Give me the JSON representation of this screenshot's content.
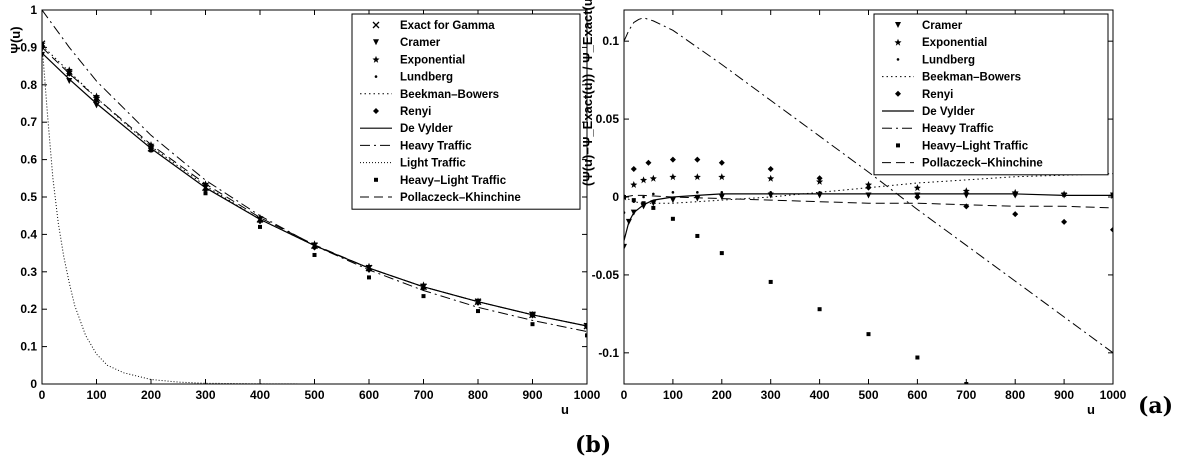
{
  "panel_labels": {
    "right": "(a)",
    "bottom": "(b)"
  },
  "chart_data": [
    {
      "type": "line",
      "panel": "left",
      "xlabel": "u",
      "ylabel": "Ψ(u)",
      "xlim": [
        0,
        1000
      ],
      "ylim": [
        0,
        1
      ],
      "xticks": [
        0,
        100,
        200,
        300,
        400,
        500,
        600,
        700,
        800,
        900,
        1000
      ],
      "yticks": [
        0,
        0.1,
        0.2,
        0.3,
        0.4,
        0.5,
        0.6,
        0.7,
        0.8,
        0.9,
        1
      ],
      "legend_position": "top-right",
      "series": [
        {
          "name": "Exact for Gamma",
          "style": "marker-x",
          "x": [
            0,
            50,
            100,
            200,
            300,
            400,
            500,
            600,
            700,
            800,
            900,
            1000
          ],
          "y": [
            0.91,
            0.83,
            0.76,
            0.63,
            0.525,
            0.44,
            0.37,
            0.31,
            0.26,
            0.22,
            0.185,
            0.155
          ]
        },
        {
          "name": "Cramer",
          "style": "marker-triangle",
          "x": [
            0,
            50,
            100,
            200,
            300,
            400,
            500,
            600,
            700,
            800,
            900,
            1000
          ],
          "y": [
            0.88,
            0.81,
            0.745,
            0.625,
            0.525,
            0.44,
            0.37,
            0.31,
            0.26,
            0.22,
            0.185,
            0.155
          ]
        },
        {
          "name": "Exponential",
          "style": "marker-star",
          "x": [
            0,
            50,
            100,
            200,
            300,
            400,
            500,
            600,
            700,
            800,
            900,
            1000
          ],
          "y": [
            0.91,
            0.84,
            0.77,
            0.64,
            0.535,
            0.445,
            0.375,
            0.315,
            0.265,
            0.222,
            0.186,
            0.156
          ]
        },
        {
          "name": "Lundberg",
          "style": "marker-dot",
          "x": [
            0,
            50,
            100,
            200,
            300,
            400,
            500,
            600,
            700,
            800,
            900,
            1000
          ],
          "y": [
            0.905,
            0.83,
            0.765,
            0.635,
            0.53,
            0.445,
            0.372,
            0.312,
            0.262,
            0.22,
            0.185,
            0.155
          ]
        },
        {
          "name": "Beekman–Bowers",
          "style": "dotted",
          "x": [
            0,
            50,
            100,
            200,
            300,
            400,
            500,
            600,
            700,
            800,
            900,
            1000
          ],
          "y": [
            0.905,
            0.835,
            0.765,
            0.635,
            0.53,
            0.44,
            0.37,
            0.31,
            0.26,
            0.22,
            0.185,
            0.155
          ]
        },
        {
          "name": "Renyi",
          "style": "marker-diamond",
          "x": [
            0,
            50,
            100,
            200,
            300,
            400,
            500,
            600,
            700,
            800,
            900,
            1000
          ],
          "y": [
            0.9,
            0.83,
            0.76,
            0.63,
            0.52,
            0.435,
            0.365,
            0.305,
            0.257,
            0.217,
            0.183,
            0.153
          ]
        },
        {
          "name": "De Vylder",
          "style": "solid",
          "x": [
            0,
            50,
            100,
            200,
            300,
            400,
            500,
            600,
            700,
            800,
            900,
            1000
          ],
          "y": [
            0.885,
            0.815,
            0.75,
            0.63,
            0.525,
            0.44,
            0.37,
            0.31,
            0.26,
            0.22,
            0.185,
            0.155
          ]
        },
        {
          "name": "Heavy Traffic",
          "style": "dashdot",
          "x": [
            0,
            50,
            100,
            200,
            300,
            400,
            500,
            600,
            700,
            800,
            900,
            1000
          ],
          "y": [
            1.0,
            0.9,
            0.81,
            0.665,
            0.545,
            0.45,
            0.37,
            0.305,
            0.25,
            0.205,
            0.17,
            0.14
          ]
        },
        {
          "name": "Light Traffic",
          "style": "dotted-fine",
          "x": [
            0,
            10,
            20,
            30,
            40,
            50,
            60,
            80,
            100,
            120,
            150,
            200,
            250,
            300,
            400,
            500,
            600,
            700,
            800,
            900,
            1000
          ],
          "y": [
            0.91,
            0.72,
            0.55,
            0.43,
            0.34,
            0.27,
            0.21,
            0.13,
            0.08,
            0.05,
            0.03,
            0.012,
            0.005,
            0.002,
            0.0005,
            0,
            0,
            0,
            0,
            0,
            0
          ]
        },
        {
          "name": "Heavy–Light Traffic",
          "style": "marker-square",
          "x": [
            0,
            50,
            100,
            200,
            300,
            400,
            500,
            600,
            700,
            800,
            900,
            1000
          ],
          "y": [
            0.91,
            0.83,
            0.76,
            0.625,
            0.51,
            0.42,
            0.345,
            0.285,
            0.235,
            0.195,
            0.16,
            0.13
          ]
        },
        {
          "name": "Pollaczeck–Khinchine",
          "style": "dashed",
          "x": [
            0,
            50,
            100,
            200,
            300,
            400,
            500,
            600,
            700,
            800,
            900,
            1000
          ],
          "y": [
            0.9,
            0.83,
            0.765,
            0.64,
            0.535,
            0.445,
            0.372,
            0.31,
            0.26,
            0.22,
            0.185,
            0.155
          ]
        }
      ]
    },
    {
      "type": "line",
      "panel": "right",
      "xlabel": "u",
      "ylabel": "(Ψ(u)−Ψ_Exact(u)) / Ψ_Exact(u)",
      "xlim": [
        0,
        1000
      ],
      "ylim": [
        -0.12,
        0.12
      ],
      "xticks": [
        0,
        100,
        200,
        300,
        400,
        500,
        600,
        700,
        800,
        900,
        1000
      ],
      "yticks": [
        -0.1,
        -0.05,
        0,
        0.05,
        0.1
      ],
      "legend_position": "top-right",
      "series": [
        {
          "name": "Cramer",
          "style": "marker-triangle",
          "x": [
            0,
            10,
            20,
            40,
            60,
            100,
            150,
            200,
            300,
            400,
            500,
            600,
            700,
            800,
            900,
            1000
          ],
          "y": [
            -0.032,
            -0.016,
            -0.01,
            -0.006,
            -0.004,
            -0.002,
            -0.001,
            0,
            0.001,
            0.001,
            0.001,
            0.001,
            0.001,
            0.001,
            0.001,
            0.001
          ]
        },
        {
          "name": "Exponential",
          "style": "marker-star",
          "x": [
            0,
            20,
            40,
            60,
            100,
            150,
            200,
            300,
            400,
            500,
            600,
            700,
            800,
            900,
            1000
          ],
          "y": [
            0.0,
            0.008,
            0.011,
            0.012,
            0.013,
            0.013,
            0.013,
            0.012,
            0.01,
            0.008,
            0.006,
            0.004,
            0.003,
            0.002,
            0.001
          ]
        },
        {
          "name": "Lundberg",
          "style": "marker-dot",
          "x": [
            0,
            20,
            40,
            60,
            100,
            150,
            200,
            300,
            400,
            500,
            600,
            700,
            800,
            900,
            1000
          ],
          "y": [
            -0.01,
            -0.003,
            0.0,
            0.002,
            0.003,
            0.003,
            0.003,
            0.003,
            0.003,
            0.002,
            0.002,
            0.002,
            0.001,
            0.001,
            0.0
          ]
        },
        {
          "name": "Beekman–Bowers",
          "style": "dotted",
          "x": [
            0,
            20,
            40,
            60,
            100,
            150,
            200,
            300,
            400,
            500,
            600,
            700,
            800,
            900,
            1000
          ],
          "y": [
            0.0,
            -0.003,
            -0.004,
            -0.004,
            -0.004,
            -0.003,
            -0.002,
            0,
            0.003,
            0.006,
            0.009,
            0.011,
            0.013,
            0.014,
            0.015
          ]
        },
        {
          "name": "Renyi",
          "style": "marker-diamond",
          "x": [
            0,
            20,
            50,
            100,
            150,
            200,
            300,
            400,
            500,
            600,
            700,
            800,
            900,
            1000
          ],
          "y": [
            0.0,
            0.018,
            0.022,
            0.024,
            0.024,
            0.022,
            0.018,
            0.012,
            0.006,
            0.0,
            -0.006,
            -0.011,
            -0.016,
            -0.021
          ]
        },
        {
          "name": "De Vylder",
          "style": "solid",
          "x": [
            0,
            10,
            20,
            40,
            60,
            100,
            150,
            200,
            300,
            400,
            500,
            600,
            700,
            800,
            900,
            1000
          ],
          "y": [
            -0.028,
            -0.016,
            -0.01,
            -0.005,
            -0.002,
            0.0,
            0.001,
            0.002,
            0.002,
            0.002,
            0.002,
            0.002,
            0.002,
            0.002,
            0.001,
            0.001
          ]
        },
        {
          "name": "Heavy Traffic",
          "style": "dashdot",
          "x": [
            0,
            10,
            20,
            30,
            40,
            60,
            100,
            150,
            200,
            300,
            400,
            500,
            600,
            700,
            800,
            900,
            1000
          ],
          "y": [
            0.1,
            0.107,
            0.112,
            0.114,
            0.115,
            0.113,
            0.107,
            0.096,
            0.085,
            0.062,
            0.039,
            0.016,
            -0.008,
            -0.031,
            -0.054,
            -0.077,
            -0.1
          ]
        },
        {
          "name": "Heavy–Light Traffic",
          "style": "marker-square",
          "x": [
            0,
            20,
            40,
            60,
            100,
            150,
            200,
            300,
            400,
            500,
            600,
            700
          ],
          "y": [
            0.0,
            -0.002,
            -0.004,
            -0.007,
            -0.014,
            -0.025,
            -0.036,
            -0.0545,
            -0.072,
            -0.088,
            -0.103,
            -0.12
          ]
        },
        {
          "name": "Pollaczeck–Khinchine",
          "style": "dashed",
          "x": [
            0,
            20,
            40,
            100,
            200,
            300,
            400,
            500,
            600,
            700,
            800,
            900,
            1000
          ],
          "y": [
            0.0,
            0.001,
            0.001,
            0.0,
            -0.001,
            -0.002,
            -0.003,
            -0.004,
            -0.004,
            -0.005,
            -0.006,
            -0.006,
            -0.007
          ]
        }
      ]
    }
  ]
}
